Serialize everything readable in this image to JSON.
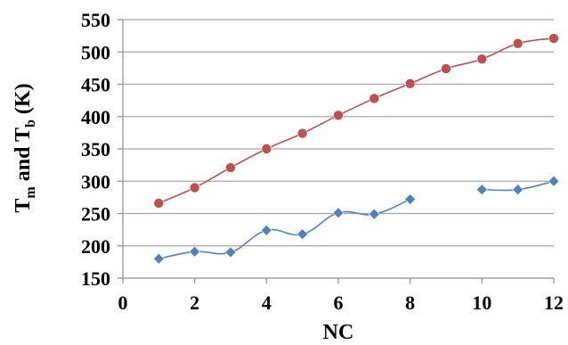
{
  "chart_data": {
    "type": "line",
    "xlabel": "NC",
    "ylabel_parts": [
      "T",
      "m",
      " and T",
      "b",
      "  (K)"
    ],
    "xlim": [
      0,
      12
    ],
    "ylim": [
      150,
      550
    ],
    "xticks": [
      0,
      2,
      4,
      6,
      8,
      10,
      12
    ],
    "yticks": [
      150,
      200,
      250,
      300,
      350,
      400,
      450,
      500,
      550
    ],
    "grid": true,
    "series": [
      {
        "color": "#c0504d",
        "marker": "circle",
        "segments": [
          [
            [
              1,
              266
            ],
            [
              2,
              290
            ],
            [
              3,
              321
            ],
            [
              4,
              350
            ],
            [
              5,
              374
            ],
            [
              6,
              402
            ],
            [
              7,
              428
            ],
            [
              8,
              451
            ],
            [
              9,
              474
            ],
            [
              10,
              489
            ],
            [
              11,
              513
            ],
            [
              12,
              521
            ]
          ]
        ]
      },
      {
        "color": "#4f81bd",
        "marker": "diamond",
        "segments": [
          [
            [
              1,
              180
            ],
            [
              2,
              191
            ],
            [
              3,
              190
            ],
            [
              4,
              224
            ],
            [
              5,
              218
            ],
            [
              6,
              251
            ],
            [
              7,
              249
            ],
            [
              8,
              272
            ]
          ],
          [
            [
              10,
              287
            ],
            [
              11,
              287
            ],
            [
              12,
              300
            ]
          ]
        ]
      }
    ]
  }
}
